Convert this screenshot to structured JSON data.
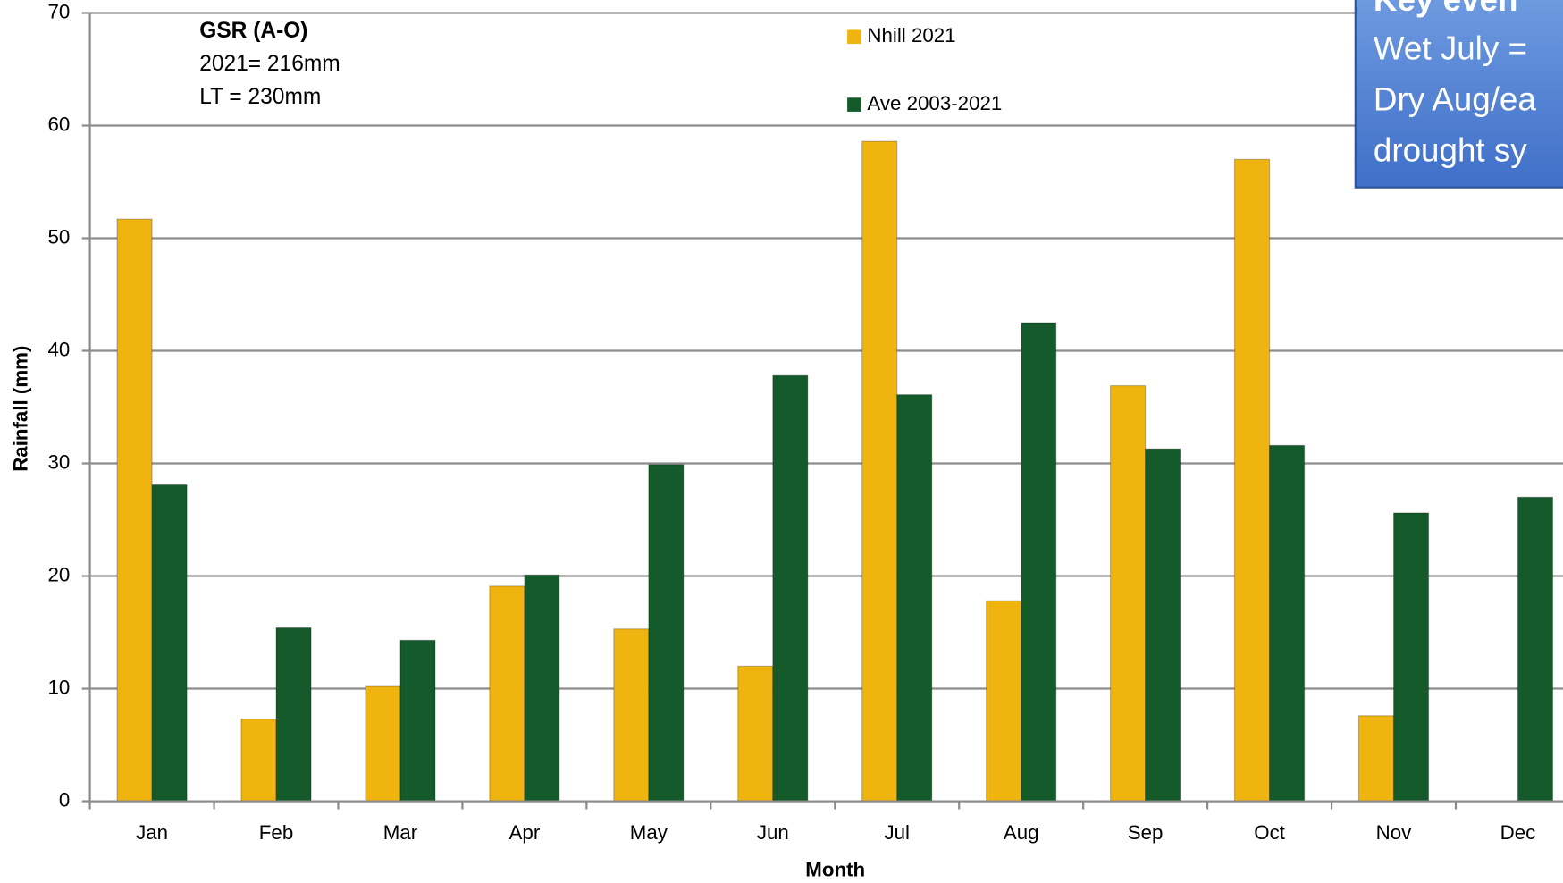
{
  "chart_data": {
    "type": "bar",
    "y_label": "Rainfall (mm)",
    "x_label": "Month",
    "categories": [
      "Jan",
      "Feb",
      "Mar",
      "Apr",
      "May",
      "Jun",
      "Jul",
      "Aug",
      "Sep",
      "Oct",
      "Nov",
      "Dec"
    ],
    "series": [
      {
        "name": "Nhill 2021",
        "color": "#f0b411",
        "values": [
          51.7,
          7.3,
          10.2,
          19.1,
          15.3,
          12.0,
          58.6,
          17.8,
          36.9,
          57.0,
          7.6,
          null
        ]
      },
      {
        "name": "Ave 2003-2021",
        "color": "#145a2b",
        "values": [
          28.1,
          15.4,
          14.3,
          20.1,
          29.9,
          37.8,
          36.1,
          42.5,
          31.3,
          31.6,
          25.6,
          27.0
        ]
      }
    ],
    "ylim": [
      0,
      70
    ],
    "yticks": [
      0,
      10,
      20,
      30,
      40,
      50,
      60,
      70
    ],
    "grid": true,
    "annotations": [
      "GSR (A-O)",
      "2021= 216mm",
      "LT = 230mm"
    ],
    "key_box": [
      "Key even",
      "Wet July = ",
      "Dry Aug/ea",
      "drought sy"
    ]
  }
}
